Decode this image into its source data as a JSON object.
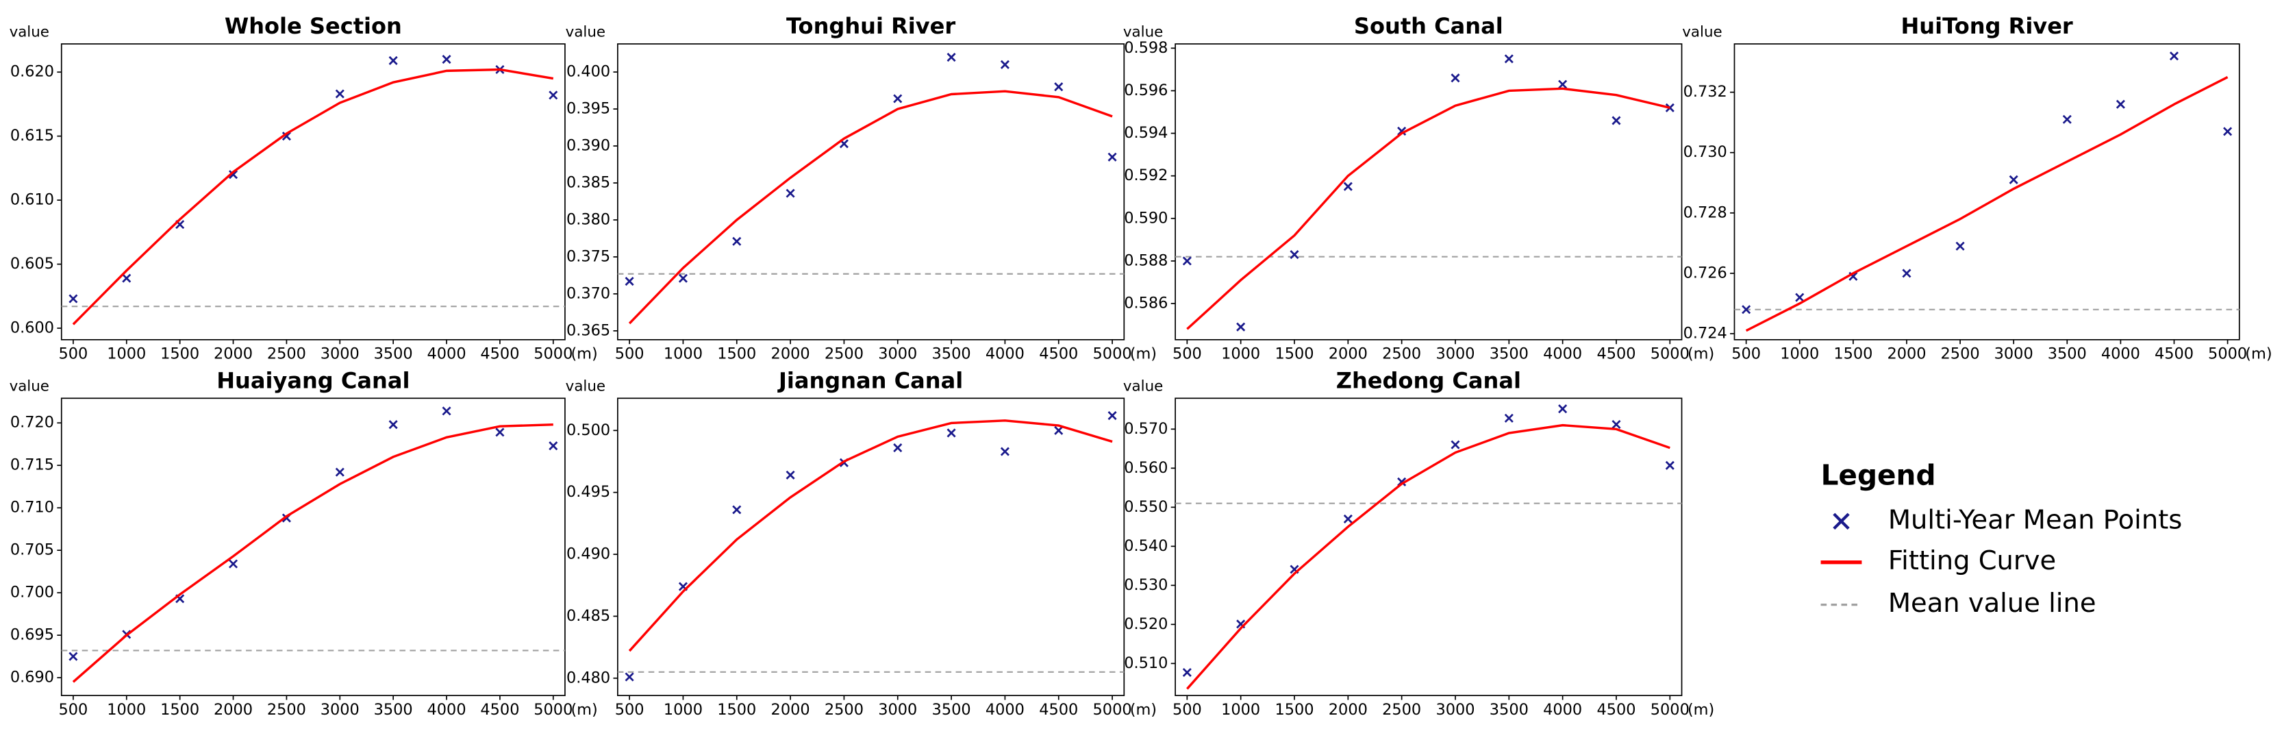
{
  "chart_data": [
    {
      "type": "scatter",
      "title": "Whole Section",
      "ylabel": "value",
      "xlabel": "(m)",
      "x": [
        500,
        1000,
        1500,
        2000,
        2500,
        3000,
        3500,
        4000,
        4500,
        5000
      ],
      "series": [
        {
          "values": [
            0.6023,
            0.6039,
            0.6081,
            0.612,
            0.615,
            0.6183,
            0.6209,
            0.621,
            0.6202,
            0.6182
          ],
          "color": "#1a1a8c",
          "marker": "x"
        },
        {
          "values": [
            0.6003,
            0.6045,
            0.6085,
            0.6122,
            0.6152,
            0.6176,
            0.6192,
            0.6201,
            0.6202,
            0.6195
          ],
          "color": "#ff0000",
          "marker": "line"
        }
      ],
      "mean": {
        "value": 0.6017,
        "color": "#a0a0a0"
      },
      "xlim": [
        390,
        5110
      ],
      "ylim": [
        0.5991,
        0.6222
      ],
      "xticks": [
        500,
        1000,
        1500,
        2000,
        2500,
        3000,
        3500,
        4000,
        4500,
        5000
      ],
      "yticks": [
        {
          "value": 0.6,
          "label": "0.600"
        },
        0.605,
        {
          "value": 0.61,
          "label": "0.610"
        },
        0.615,
        {
          "value": 0.62,
          "label": "0.620"
        }
      ]
    },
    {
      "type": "scatter",
      "title": "Tonghui River",
      "ylabel": "value",
      "xlabel": "(m)",
      "x": [
        500,
        1000,
        1500,
        2000,
        2500,
        3000,
        3500,
        4000,
        4500,
        5000
      ],
      "series": [
        {
          "values": [
            0.3717,
            0.3721,
            0.3771,
            0.3836,
            0.3903,
            0.3964,
            0.402,
            0.401,
            0.398,
            0.3885
          ],
          "color": "#1a1a8c",
          "marker": "x"
        },
        {
          "values": [
            0.366,
            0.3735,
            0.38,
            0.3857,
            0.391,
            0.395,
            0.397,
            0.3974,
            0.3966,
            0.394
          ],
          "color": "#ff0000",
          "marker": "line"
        }
      ],
      "mean": {
        "value": 0.3727,
        "color": "#a0a0a0"
      },
      "xlim": [
        390,
        5110
      ],
      "ylim": [
        0.3638,
        0.4038
      ],
      "xticks": [
        500,
        1000,
        1500,
        2000,
        2500,
        3000,
        3500,
        4000,
        4500,
        5000
      ],
      "yticks": [
        0.365,
        {
          "value": 0.37,
          "label": "0.370"
        },
        0.375,
        {
          "value": 0.38,
          "label": "0.380"
        },
        0.385,
        {
          "value": 0.39,
          "label": "0.390"
        },
        0.395,
        {
          "value": 0.4,
          "label": "0.400"
        }
      ]
    },
    {
      "type": "scatter",
      "title": "South Canal",
      "ylabel": "value",
      "xlabel": "(m)",
      "x": [
        500,
        1000,
        1500,
        2000,
        2500,
        3000,
        3500,
        4000,
        4500,
        5000
      ],
      "series": [
        {
          "values": [
            0.588,
            0.5849,
            0.5883,
            0.5915,
            0.5941,
            0.5966,
            0.5975,
            0.5963,
            0.5946,
            0.5952
          ],
          "color": "#1a1a8c",
          "marker": "x"
        },
        {
          "values": [
            0.5848,
            0.5871,
            0.5892,
            0.592,
            0.594,
            0.5953,
            0.596,
            0.5961,
            0.5958,
            0.5952
          ],
          "color": "#ff0000",
          "marker": "line"
        }
      ],
      "mean": {
        "value": 0.5882,
        "color": "#a0a0a0"
      },
      "xlim": [
        390,
        5110
      ],
      "ylim": [
        0.5843,
        0.5982
      ],
      "xticks": [
        500,
        1000,
        1500,
        2000,
        2500,
        3000,
        3500,
        4000,
        4500,
        5000
      ],
      "yticks": [
        0.586,
        0.588,
        {
          "value": 0.59,
          "label": "0.590"
        },
        0.592,
        0.594,
        0.596,
        0.598
      ]
    },
    {
      "type": "scatter",
      "title": "HuiTong River",
      "ylabel": "value",
      "xlabel": "(m)",
      "x": [
        500,
        1000,
        1500,
        2000,
        2500,
        3000,
        3500,
        4000,
        4500,
        5000
      ],
      "series": [
        {
          "values": [
            0.7248,
            0.7252,
            0.7259,
            0.726,
            0.7269,
            0.7291,
            0.7311,
            0.7316,
            0.7332,
            0.7307
          ],
          "color": "#1a1a8c",
          "marker": "x"
        },
        {
          "values": [
            0.7241,
            0.725,
            0.726,
            0.7269,
            0.7278,
            0.7288,
            0.7297,
            0.7306,
            0.7316,
            0.7325
          ],
          "color": "#ff0000",
          "marker": "line"
        }
      ],
      "mean": {
        "value": 0.7248,
        "color": "#a0a0a0"
      },
      "xlim": [
        390,
        5110
      ],
      "ylim": [
        0.7238,
        0.7336
      ],
      "xticks": [
        500,
        1000,
        1500,
        2000,
        2500,
        3000,
        3500,
        4000,
        4500,
        5000
      ],
      "yticks": [
        0.724,
        0.726,
        0.728,
        {
          "value": 0.73,
          "label": "0.730"
        },
        0.732
      ]
    },
    {
      "type": "scatter",
      "title": "Huaiyang Canal",
      "ylabel": "value",
      "xlabel": "(m)",
      "x": [
        500,
        1000,
        1500,
        2000,
        2500,
        3000,
        3500,
        4000,
        4500,
        5000
      ],
      "series": [
        {
          "values": [
            0.6925,
            0.6951,
            0.6993,
            0.7034,
            0.7088,
            0.7142,
            0.7198,
            0.7214,
            0.7189,
            0.7173
          ],
          "color": "#1a1a8c",
          "marker": "x"
        },
        {
          "values": [
            0.6895,
            0.695,
            0.6998,
            0.7043,
            0.709,
            0.7128,
            0.716,
            0.7183,
            0.7196,
            0.7198
          ],
          "color": "#ff0000",
          "marker": "line"
        }
      ],
      "mean": {
        "value": 0.6932,
        "color": "#a0a0a0"
      },
      "xlim": [
        390,
        5110
      ],
      "ylim": [
        0.6879,
        0.7229
      ],
      "xticks": [
        500,
        1000,
        1500,
        2000,
        2500,
        3000,
        3500,
        4000,
        4500,
        5000
      ],
      "yticks": [
        {
          "value": 0.69,
          "label": "0.690"
        },
        0.695,
        {
          "value": 0.7,
          "label": "0.700"
        },
        0.705,
        {
          "value": 0.71,
          "label": "0.710"
        },
        0.715,
        {
          "value": 0.72,
          "label": "0.720"
        }
      ]
    },
    {
      "type": "scatter",
      "title": "Jiangnan Canal",
      "ylabel": "value",
      "xlabel": "(m)",
      "x": [
        500,
        1000,
        1500,
        2000,
        2500,
        3000,
        3500,
        4000,
        4500,
        5000
      ],
      "series": [
        {
          "values": [
            0.4801,
            0.4874,
            0.4936,
            0.4964,
            0.4974,
            0.4986,
            0.4998,
            0.4983,
            0.5,
            0.5012
          ],
          "color": "#1a1a8c",
          "marker": "x"
        },
        {
          "values": [
            0.4822,
            0.487,
            0.4912,
            0.4946,
            0.4975,
            0.4995,
            0.5006,
            0.5008,
            0.5004,
            0.4991
          ],
          "color": "#ff0000",
          "marker": "line"
        }
      ],
      "mean": {
        "value": 0.4805,
        "color": "#a0a0a0"
      },
      "xlim": [
        390,
        5110
      ],
      "ylim": [
        0.4786,
        0.5026
      ],
      "xticks": [
        500,
        1000,
        1500,
        2000,
        2500,
        3000,
        3500,
        4000,
        4500,
        5000
      ],
      "yticks": [
        {
          "value": 0.48,
          "label": "0.480"
        },
        0.485,
        {
          "value": 0.49,
          "label": "0.490"
        },
        0.495,
        {
          "value": 0.5,
          "label": "0.500"
        }
      ]
    },
    {
      "type": "scatter",
      "title": "Zhedong Canal",
      "ylabel": "value",
      "xlabel": "(m)",
      "x": [
        500,
        1000,
        1500,
        2000,
        2500,
        3000,
        3500,
        4000,
        4500,
        5000
      ],
      "series": [
        {
          "values": [
            0.5077,
            0.5201,
            0.5341,
            0.547,
            0.5565,
            0.566,
            0.5728,
            0.5752,
            0.5712,
            0.5607
          ],
          "color": "#1a1a8c",
          "marker": "x"
        },
        {
          "values": [
            0.5035,
            0.519,
            0.533,
            0.545,
            0.556,
            0.564,
            0.569,
            0.571,
            0.57,
            0.5652
          ],
          "color": "#ff0000",
          "marker": "line"
        }
      ],
      "mean": {
        "value": 0.551,
        "color": "#a0a0a0"
      },
      "xlim": [
        390,
        5110
      ],
      "ylim": [
        0.5018,
        0.5779
      ],
      "xticks": [
        500,
        1000,
        1500,
        2000,
        2500,
        3000,
        3500,
        4000,
        4500,
        5000
      ],
      "yticks": [
        {
          "value": 0.51,
          "label": "0.510"
        },
        {
          "value": 0.52,
          "label": "0.520"
        },
        {
          "value": 0.53,
          "label": "0.530"
        },
        {
          "value": 0.54,
          "label": "0.540"
        },
        {
          "value": 0.55,
          "label": "0.550"
        },
        {
          "value": 0.56,
          "label": "0.560"
        },
        {
          "value": 0.57,
          "label": "0.570"
        }
      ]
    }
  ],
  "legend": {
    "title": "Legend",
    "entries": [
      "Multi-Year Mean Points",
      "Fitting Curve",
      "Mean value line"
    ]
  }
}
